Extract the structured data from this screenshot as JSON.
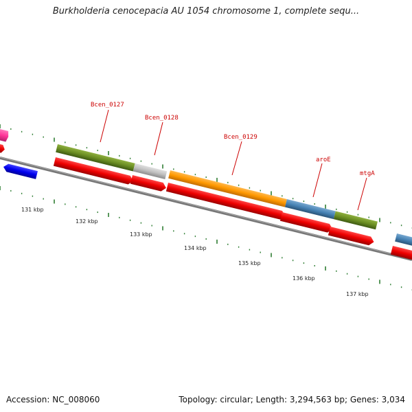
{
  "title": "Burkholderia cenocepacia AU 1054 chromosome 1, complete sequ...",
  "footer": {
    "accession": "Accession: NC_008060",
    "summary": "Topology: circular; Length: 3,294,563 bp; Genes: 3,034"
  },
  "gene_labels": [
    "Bcen_0127",
    "Bcen_0128",
    "Bcen_0129",
    "aroE",
    "mtgA"
  ],
  "kbp_labels": [
    "131 kbp",
    "132 kbp",
    "133 kbp",
    "134 kbp",
    "135 kbp",
    "136 kbp",
    "137 kbp"
  ],
  "colors": {
    "cds": "#ee0000",
    "backbone": "#777777",
    "ticks": "#2e7d32",
    "label_lines": "#cc0000",
    "olive": "#6b8e23",
    "grey": "#c0c0c0",
    "orange": "#ff9900",
    "steelblue": "#4682b4",
    "pink": "#ff3399",
    "blue": "#0000ee"
  }
}
